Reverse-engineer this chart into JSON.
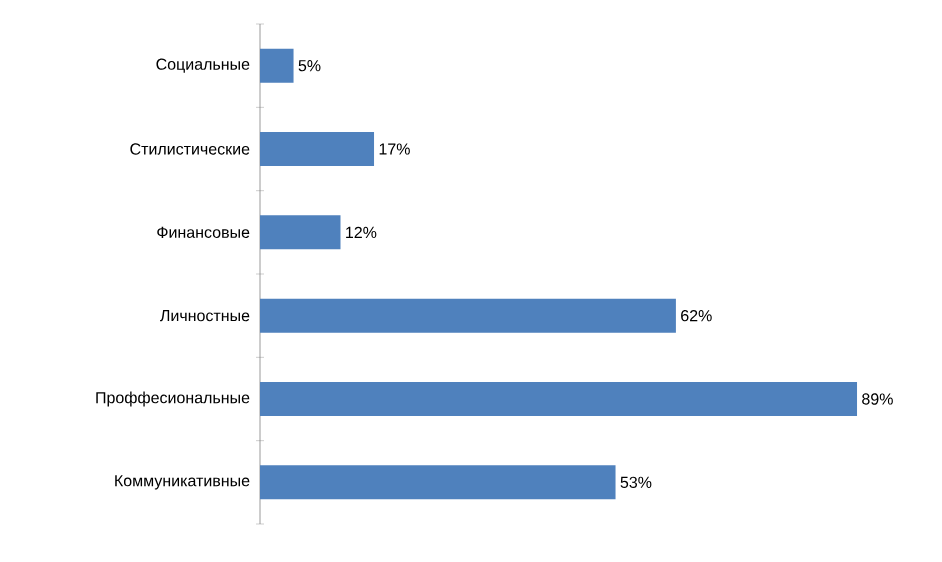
{
  "chart_data": {
    "type": "bar",
    "orientation": "horizontal",
    "categories": [
      "Социальные",
      "Стилистические",
      "Финансовые",
      "Личностные",
      "Проффесиональные",
      "Коммуникативные"
    ],
    "values": [
      5,
      17,
      12,
      62,
      89,
      53
    ],
    "value_labels": [
      "5%",
      "17%",
      "12%",
      "62%",
      "89%",
      "53%"
    ],
    "color": "#4f81bd"
  }
}
